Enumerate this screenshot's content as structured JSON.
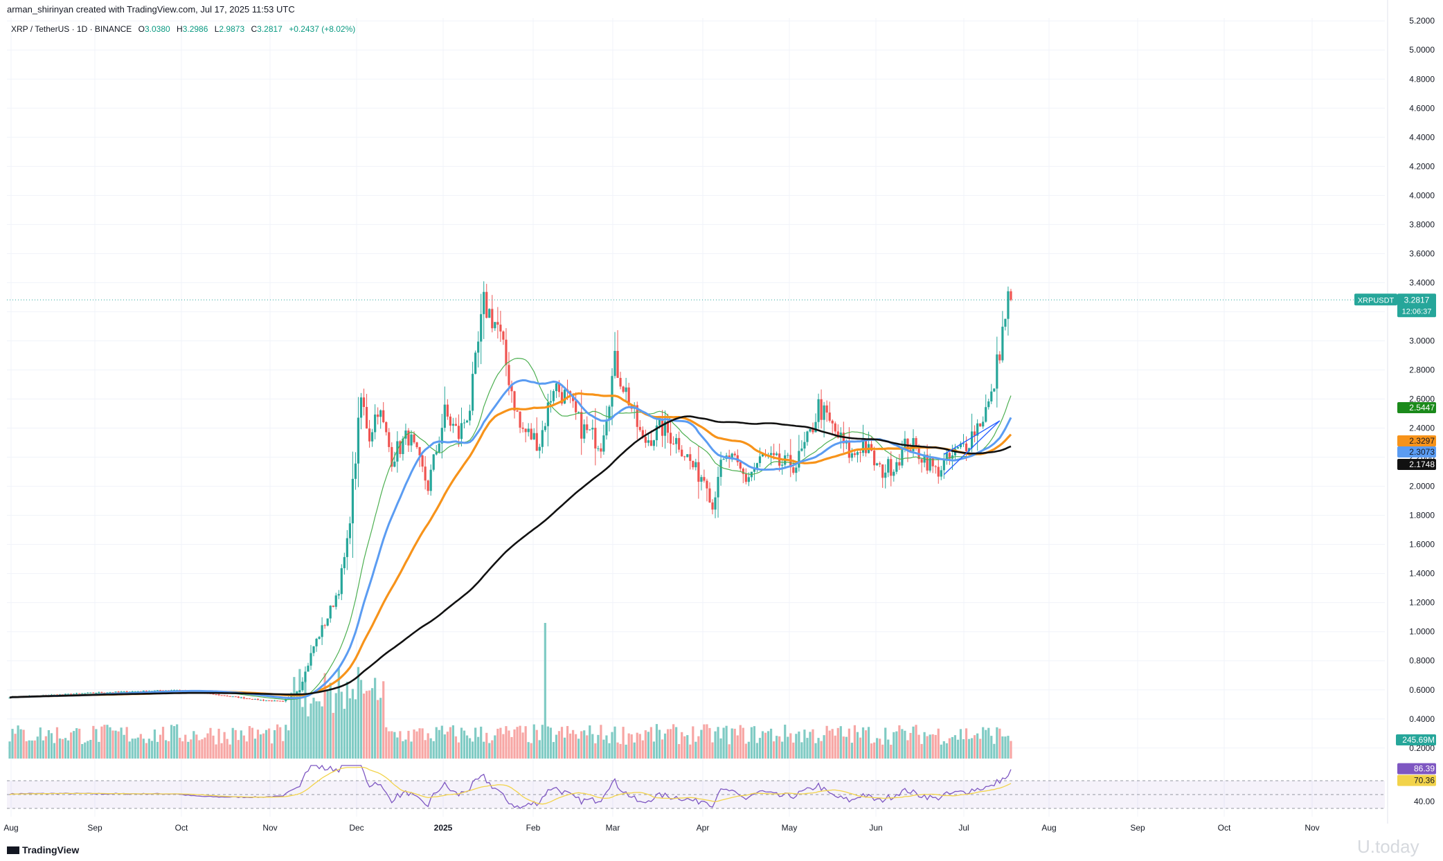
{
  "header": {
    "attribution": "arman_shirinyan created with TradingView.com, Jul 17, 2025 11:53 UTC",
    "symbol_line": "XRP / TetherUS · 1D · BINANCE",
    "o_label": "O",
    "o_value": "3.0380",
    "h_label": "H",
    "h_value": "3.2986",
    "l_label": "L",
    "l_value": "2.9873",
    "c_label": "C",
    "c_value": "3.2817",
    "change": "+0.2437 (+8.02%)"
  },
  "footer": {
    "brand": "TradingView",
    "watermark": "U.today"
  },
  "colors": {
    "up": "#26a69a",
    "down": "#ef5350",
    "vol_up": "#80cbc4",
    "vol_down": "#f7a6a4",
    "ma_fast": "#4caf50",
    "ma_blue": "#5b9cf2",
    "ma_orange": "#f7931a",
    "ma_black": "#111111",
    "rsi": "#7e57c2",
    "rsi_ma": "#f2d34a",
    "grid": "#f0f3fa"
  },
  "chart_data": {
    "type": "candlestick",
    "price_axis": {
      "ticks": [
        "5.2000",
        "5.0000",
        "4.8000",
        "4.6000",
        "4.4000",
        "4.2000",
        "4.0000",
        "3.8000",
        "3.6000",
        "3.4000",
        "3.2000",
        "3.0000",
        "2.8000",
        "2.6000",
        "2.4000",
        "2.2000",
        "2.0000",
        "1.8000",
        "1.6000",
        "1.4000",
        "1.2000",
        "1.0000",
        "0.8000",
        "0.6000",
        "0.4000",
        "0.2000"
      ],
      "range": [
        0.18,
        5.22
      ]
    },
    "time_axis": {
      "ticks": [
        "Aug",
        "Sep",
        "Oct",
        "Nov",
        "Dec",
        "2025",
        "Feb",
        "Mar",
        "Apr",
        "May",
        "Jun",
        "Jul",
        "Aug",
        "Sep",
        "Oct",
        "Nov"
      ]
    },
    "price_keypoints": [
      [
        0,
        0.55
      ],
      [
        30,
        0.58
      ],
      [
        60,
        0.6
      ],
      [
        90,
        0.53
      ],
      [
        98,
        0.52
      ],
      [
        104,
        0.6
      ],
      [
        109,
        0.9
      ],
      [
        114,
        1.1
      ],
      [
        118,
        1.3
      ],
      [
        121,
        1.6
      ],
      [
        126,
        2.6
      ],
      [
        129,
        2.35
      ],
      [
        132,
        2.55
      ],
      [
        137,
        2.2
      ],
      [
        143,
        2.35
      ],
      [
        150,
        2.0
      ],
      [
        156,
        2.5
      ],
      [
        161,
        2.35
      ],
      [
        165,
        2.55
      ],
      [
        170,
        3.25
      ],
      [
        175,
        3.1
      ],
      [
        183,
        2.4
      ],
      [
        190,
        2.3
      ],
      [
        195,
        2.7
      ],
      [
        200,
        2.6
      ],
      [
        205,
        2.4
      ],
      [
        212,
        2.3
      ],
      [
        217,
        2.85
      ],
      [
        222,
        2.6
      ],
      [
        227,
        2.3
      ],
      [
        234,
        2.4
      ],
      [
        240,
        2.3
      ],
      [
        246,
        2.1
      ],
      [
        250,
        2.05
      ],
      [
        252,
        1.85
      ],
      [
        254,
        2.1
      ],
      [
        258,
        2.2
      ],
      [
        264,
        2.05
      ],
      [
        270,
        2.2
      ],
      [
        276,
        2.15
      ],
      [
        282,
        2.15
      ],
      [
        287,
        2.35
      ],
      [
        290,
        2.55
      ],
      [
        295,
        2.4
      ],
      [
        302,
        2.2
      ],
      [
        306,
        2.3
      ],
      [
        312,
        2.1
      ],
      [
        317,
        2.15
      ],
      [
        322,
        2.3
      ],
      [
        328,
        2.2
      ],
      [
        332,
        2.1
      ],
      [
        338,
        2.2
      ],
      [
        343,
        2.3
      ],
      [
        348,
        2.45
      ],
      [
        352,
        2.6
      ],
      [
        355,
        2.95
      ],
      [
        358,
        3.28
      ]
    ],
    "moving_averages": [
      {
        "color_key": "ma_fast",
        "window": 20,
        "last": "2.5447"
      },
      {
        "color_key": "ma_orange",
        "window": 50,
        "last": "2.3297"
      },
      {
        "color_key": "ma_blue",
        "window": 30,
        "last": "2.3073"
      },
      {
        "color_key": "ma_black",
        "window": 120,
        "last": "2.1748"
      }
    ],
    "last_price": {
      "label": "XRPUSDT",
      "value": "3.2817",
      "countdown": "12:06:37"
    },
    "volume": {
      "last": "245.69M"
    },
    "rsi": {
      "ticks": [
        "40.00"
      ],
      "value": "86.39",
      "ma_value": "70.36",
      "levels": [
        70,
        50,
        30
      ]
    }
  }
}
